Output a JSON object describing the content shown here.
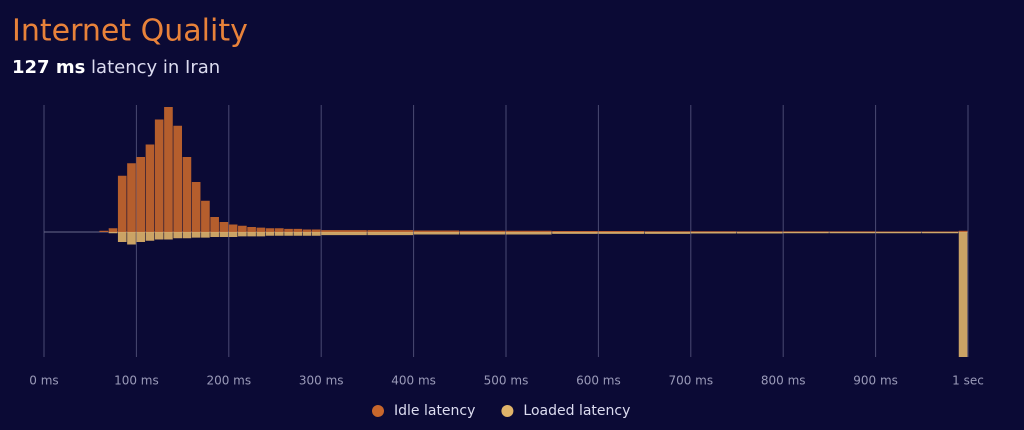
{
  "chart_data": {
    "type": "histogram",
    "title": "Internet Quality",
    "subtitle_emphasis": "127 ms",
    "subtitle": "latency in Iran",
    "bins": [
      60,
      70,
      80,
      90,
      100,
      110,
      120,
      130,
      140,
      150,
      160,
      170,
      180,
      190,
      200,
      210,
      220,
      230,
      240,
      250,
      260,
      270,
      280,
      290,
      300,
      350,
      400,
      450,
      500,
      550,
      600,
      650,
      700,
      750,
      800,
      850,
      900,
      950,
      990,
      1000
    ],
    "series": [
      {
        "name": "Idle latency",
        "color": "#c8672c",
        "direction": "up",
        "values": [
          1,
          3,
          45,
          55,
          60,
          70,
          90,
          100,
          85,
          60,
          40,
          25,
          12,
          8,
          6,
          5,
          4,
          3.5,
          3,
          3,
          2.5,
          2.5,
          2,
          2,
          1.5,
          1.5,
          1.2,
          1,
          1,
          0.8,
          0.8,
          0.6,
          0.6,
          0.5,
          0.5,
          0.5,
          0.4,
          0.4,
          1
        ]
      },
      {
        "name": "Loaded latency",
        "color": "#e0b46a",
        "direction": "down",
        "values": [
          0,
          1,
          8,
          10,
          8,
          7,
          6,
          6,
          5,
          5,
          4.5,
          4.5,
          4,
          4,
          4,
          3.5,
          3.5,
          3.5,
          3,
          3,
          3,
          3,
          3,
          3,
          2.5,
          2.5,
          2,
          2,
          2,
          1.5,
          1.5,
          1.5,
          1.2,
          1.2,
          1,
          1,
          1,
          1,
          100
        ]
      }
    ],
    "xlim": [
      0,
      1000
    ],
    "xticks": [
      {
        "value": 0,
        "label": "0 ms"
      },
      {
        "value": 100,
        "label": "100 ms"
      },
      {
        "value": 200,
        "label": "200 ms"
      },
      {
        "value": 300,
        "label": "300 ms"
      },
      {
        "value": 400,
        "label": "400 ms"
      },
      {
        "value": 500,
        "label": "500 ms"
      },
      {
        "value": 600,
        "label": "600 ms"
      },
      {
        "value": 700,
        "label": "700 ms"
      },
      {
        "value": 800,
        "label": "800 ms"
      },
      {
        "value": 900,
        "label": "900 ms"
      },
      {
        "value": 1000,
        "label": "1 sec"
      }
    ],
    "ylim": [
      0,
      100
    ],
    "grid": true
  }
}
